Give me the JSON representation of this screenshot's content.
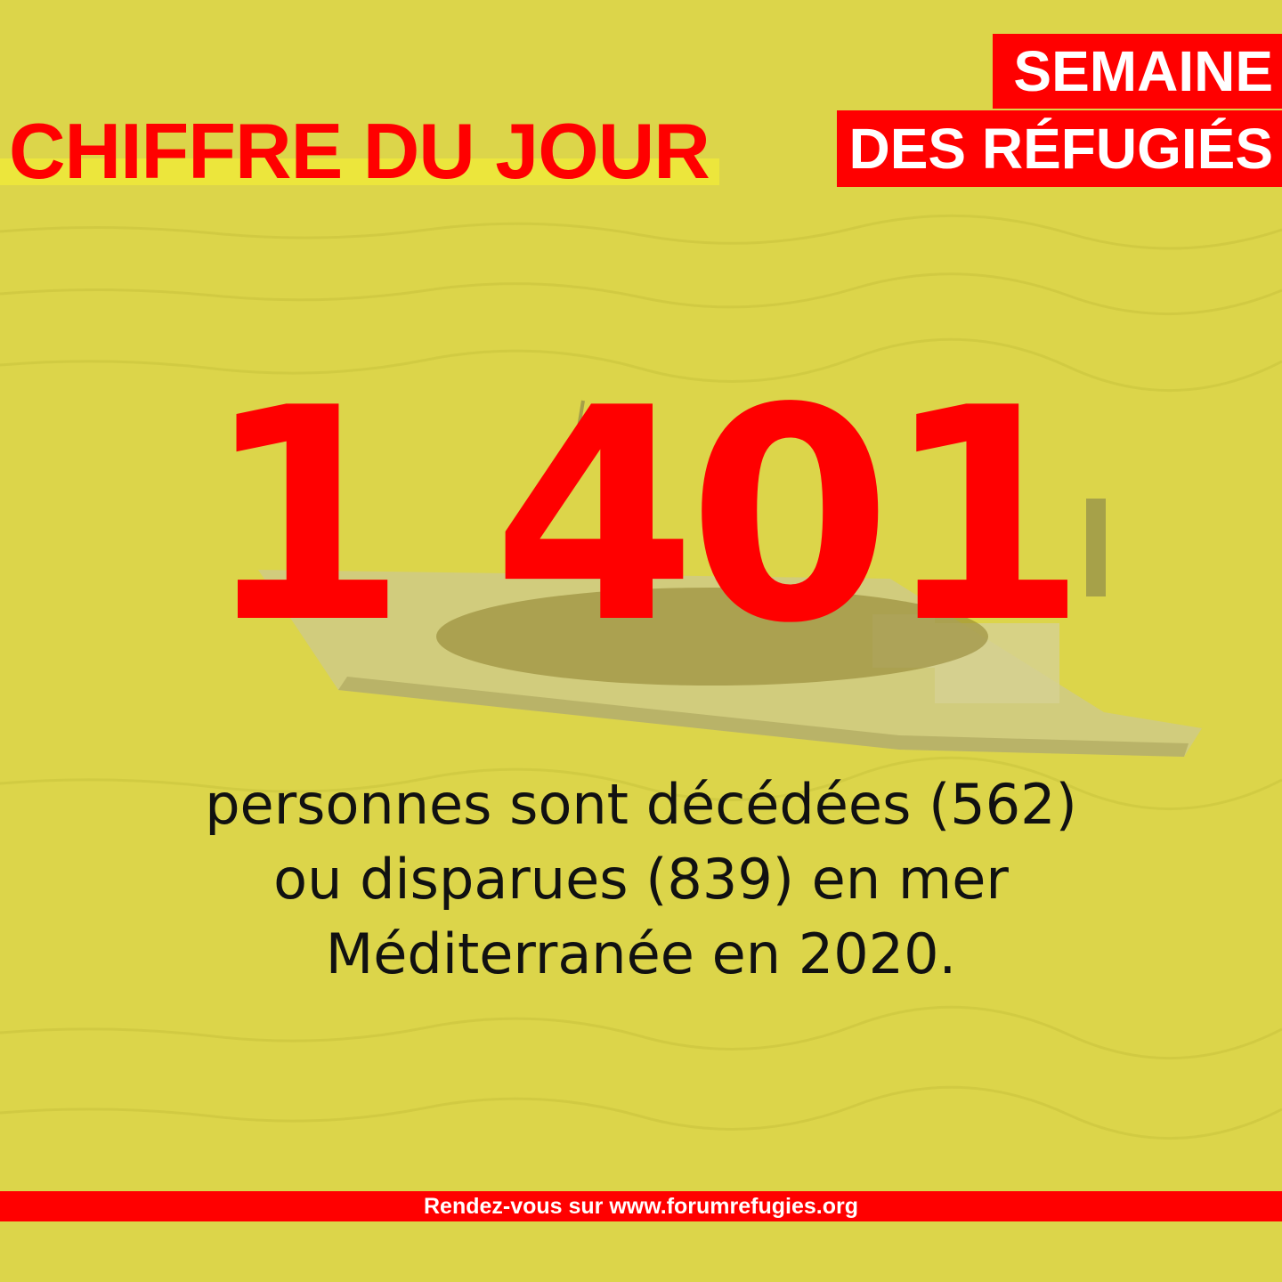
{
  "header": {
    "title": "CHIFFRE DU JOUR",
    "badge_line1": "SEMAINE",
    "badge_line2": "DES RÉFUGIÉS"
  },
  "main": {
    "number": "1 401",
    "caption": [
      "personnes sont décédées (562)",
      "ou disparues (839) en mer",
      "Méditerranée en 2020."
    ]
  },
  "footer": {
    "text": "Rendez-vous sur www.forumrefugies.org"
  },
  "colors": {
    "accent": "#ff0000",
    "background": "#dcd54a",
    "text": "#111111"
  }
}
